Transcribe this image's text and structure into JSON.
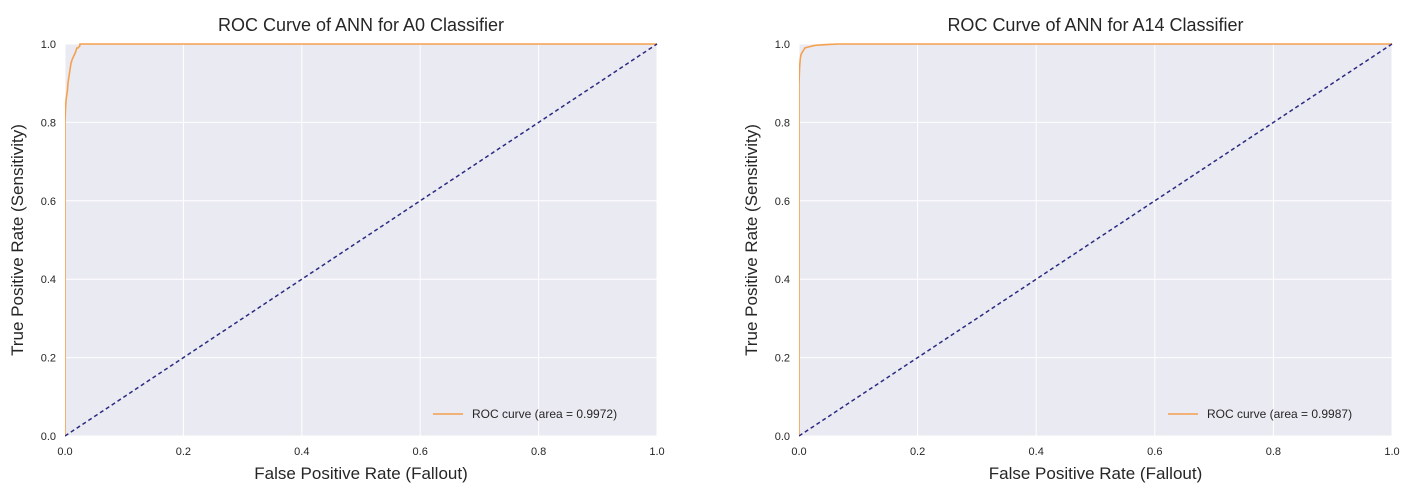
{
  "chart_data": [
    {
      "type": "line",
      "title": "ROC Curve of ANN for A0 Classifier",
      "xlabel": "False Positive Rate (Fallout)",
      "ylabel": "True Positive Rate (Sensitivity)",
      "xlim": [
        0.0,
        1.0
      ],
      "ylim": [
        0.0,
        1.0
      ],
      "xticks": [
        "0.0",
        "0.2",
        "0.4",
        "0.6",
        "0.8",
        "1.0"
      ],
      "yticks": [
        "0.0",
        "0.2",
        "0.4",
        "0.6",
        "0.8",
        "1.0"
      ],
      "grid": true,
      "legend_position": "bottom-right",
      "series": [
        {
          "name": "ROC curve (area = 0.9972)",
          "color": "#f5a04e",
          "x": [
            0.0,
            0.0,
            0.001,
            0.002,
            0.003,
            0.004,
            0.005,
            0.006,
            0.008,
            0.01,
            0.012,
            0.015,
            0.018,
            0.02,
            0.022,
            0.025,
            0.025,
            1.0
          ],
          "y": [
            0.0,
            0.8,
            0.84,
            0.86,
            0.87,
            0.88,
            0.9,
            0.91,
            0.93,
            0.95,
            0.96,
            0.97,
            0.98,
            0.99,
            0.99,
            0.995,
            1.0,
            1.0
          ]
        },
        {
          "name": "",
          "color": "#2a2a80",
          "dashed": true,
          "x": [
            0.0,
            1.0
          ],
          "y": [
            0.0,
            1.0
          ]
        }
      ]
    },
    {
      "type": "line",
      "title": "ROC Curve of ANN for A14 Classifier",
      "xlabel": "False Positive Rate (Fallout)",
      "ylabel": "True Positive Rate (Sensitivity)",
      "xlim": [
        0.0,
        1.0
      ],
      "ylim": [
        0.0,
        1.0
      ],
      "xticks": [
        "0.0",
        "0.2",
        "0.4",
        "0.6",
        "0.8",
        "1.0"
      ],
      "yticks": [
        "0.0",
        "0.2",
        "0.4",
        "0.6",
        "0.8",
        "1.0"
      ],
      "grid": true,
      "legend_position": "bottom-right",
      "series": [
        {
          "name": "ROC curve (area = 0.9987)",
          "color": "#f5a04e",
          "x": [
            0.0,
            0.0,
            0.001,
            0.002,
            0.003,
            0.004,
            0.006,
            0.008,
            0.01,
            0.015,
            0.02,
            0.025,
            0.03,
            0.04,
            0.05,
            0.06,
            0.065,
            1.0
          ],
          "y": [
            0.0,
            0.9,
            0.94,
            0.96,
            0.97,
            0.975,
            0.98,
            0.985,
            0.99,
            0.992,
            0.994,
            0.996,
            0.997,
            0.998,
            0.999,
            0.9995,
            1.0,
            1.0
          ]
        },
        {
          "name": "",
          "color": "#2a2a80",
          "dashed": true,
          "x": [
            0.0,
            1.0
          ],
          "y": [
            0.0,
            1.0
          ]
        }
      ]
    }
  ]
}
